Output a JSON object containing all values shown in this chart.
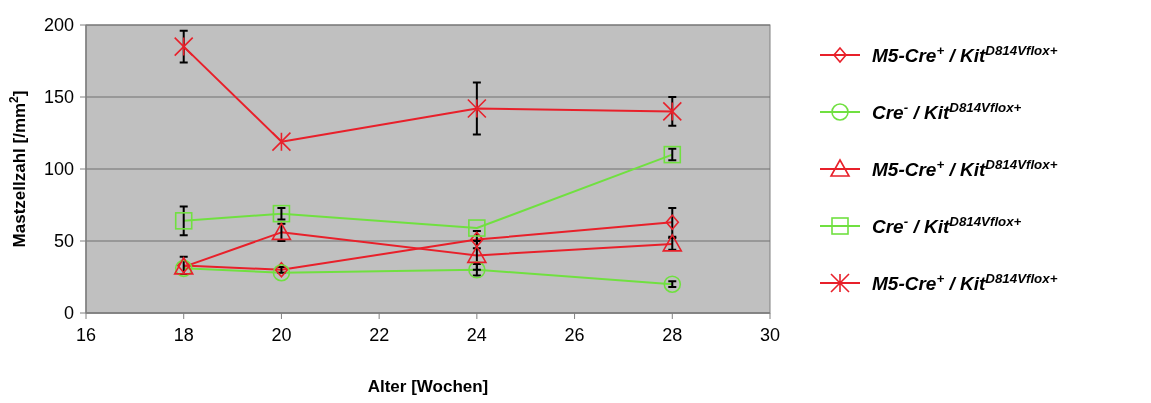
{
  "chart_data": {
    "type": "line",
    "xlabel": "Alter [Wochen]",
    "ylabel": "Mastzellzahl [/mm$^{2}$]",
    "x": [
      18,
      20,
      24,
      28
    ],
    "xlim": [
      16,
      30
    ],
    "xticks": [
      16,
      18,
      20,
      22,
      24,
      26,
      28,
      30
    ],
    "ylim": [
      0,
      200
    ],
    "yticks": [
      0,
      50,
      100,
      150,
      200
    ],
    "grid": "y",
    "legend": "right",
    "series": [
      {
        "name": "M5-Cre$^{+}$ / Kit$^{D814Vflox+}$",
        "color": "#e8202a",
        "marker": "diamond",
        "values": [
          33,
          30,
          51,
          63
        ],
        "errors": [
          6,
          2,
          6,
          10
        ]
      },
      {
        "name": "Cre$^{-}$ / Kit$^{D814Vflox+}$",
        "color": "#70e040",
        "marker": "circle",
        "values": [
          31,
          28,
          30,
          20
        ],
        "errors": [
          null,
          null,
          4,
          2
        ]
      },
      {
        "name": "M5-Cre$^{+}$ / Kit$^{D814Vflox+}$",
        "color": "#e8202a",
        "marker": "triangle",
        "values": [
          32,
          56,
          40,
          48
        ],
        "errors": [
          null,
          6,
          10,
          4
        ]
      },
      {
        "name": "Cre$^{-}$ / Kit$^{D814Vflox+}$",
        "color": "#70e040",
        "marker": "square",
        "values": [
          64,
          69,
          59,
          110
        ],
        "errors": [
          10,
          4,
          null,
          4
        ]
      },
      {
        "name": "M5-Cre$^{+}$ / Kit$^{D814Vflox+}$",
        "color": "#e8202a",
        "marker": "cross",
        "values": [
          185,
          119,
          142,
          140
        ],
        "errors": [
          11,
          null,
          18,
          10
        ]
      }
    ]
  }
}
